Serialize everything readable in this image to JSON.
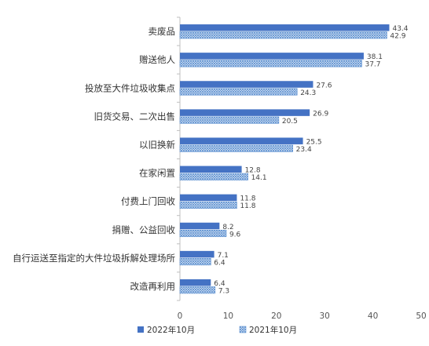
{
  "chart_data": {
    "type": "bar",
    "orientation": "horizontal",
    "title": "",
    "xlabel": "",
    "ylabel": "",
    "xlim": [
      0,
      50
    ],
    "xticks": [
      0,
      10,
      20,
      30,
      40,
      50
    ],
    "grid": false,
    "legend_position": "bottom",
    "categories": [
      "卖废品",
      "赠送他人",
      "投放至大件垃圾收集点",
      "旧货交易、二次出售",
      "以旧换新",
      "在家闲置",
      "付费上门回收",
      "捐赠、公益回收",
      "自行运送至指定的大件垃圾拆解处理场所",
      "改造再利用"
    ],
    "series": [
      {
        "name": "2022年10月",
        "color": "#4472C4",
        "pattern": "solid",
        "values": [
          43.4,
          38.1,
          27.6,
          26.9,
          25.5,
          12.8,
          11.8,
          8.2,
          7.1,
          6.4
        ]
      },
      {
        "name": "2021年10月",
        "color": "#5B8FD0",
        "pattern": "crosshatch",
        "values": [
          42.9,
          37.7,
          24.3,
          20.5,
          23.4,
          14.1,
          11.8,
          9.6,
          6.4,
          7.3
        ]
      }
    ]
  }
}
